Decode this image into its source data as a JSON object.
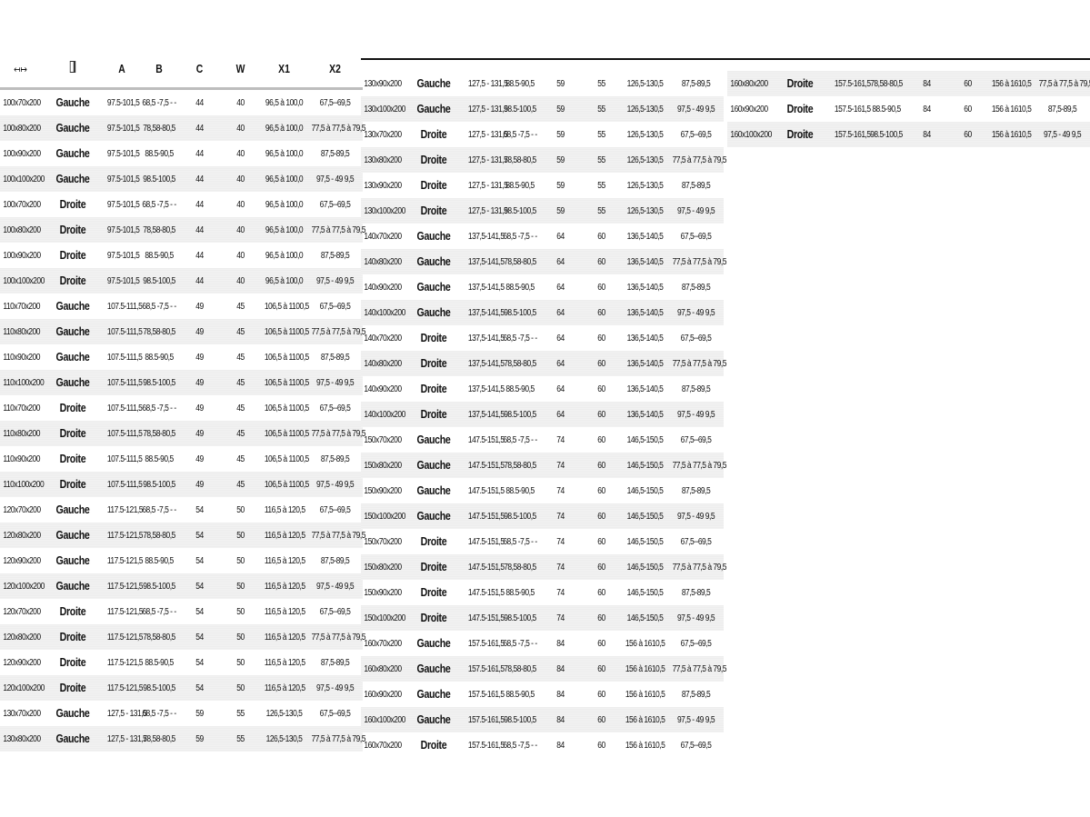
{
  "header": {
    "width_icon": "width-arrows-icon",
    "door_icon": "door-icon",
    "columns": [
      "A",
      "B",
      "C",
      "W",
      "X1",
      "X2"
    ]
  },
  "tables": [
    {
      "rows": [
        [
          "100x70x200",
          "Gauche",
          "97.5-101,5",
          "68,5 -7,5 - -",
          "44",
          "40",
          "96,5 à 100,0",
          "67,5--69,5"
        ],
        [
          "100x80x200",
          "Gauche",
          "97.5-101,5",
          "78,58-80,5",
          "44",
          "40",
          "96,5 à 100,0",
          "77,5 à 77,5 à 79,5"
        ],
        [
          "100x90x200",
          "Gauche",
          "97.5-101,5",
          "88.5-90,5",
          "44",
          "40",
          "96,5 à 100,0",
          "87,5-89,5"
        ],
        [
          "100x100x200",
          "Gauche",
          "97.5-101,5",
          "98.5-100,5",
          "44",
          "40",
          "96,5 à 100,0",
          "97,5 - 49 9,5"
        ],
        [
          "100x70x200",
          "Droite",
          "97.5-101,5",
          "68,5 -7,5 - -",
          "44",
          "40",
          "96,5 à 100,0",
          "67,5--69,5"
        ],
        [
          "100x80x200",
          "Droite",
          "97.5-101,5",
          "78,58-80,5",
          "44",
          "40",
          "96,5 à 100,0",
          "77,5 à 77,5 à 79,5"
        ],
        [
          "100x90x200",
          "Droite",
          "97.5-101,5",
          "88.5-90,5",
          "44",
          "40",
          "96,5 à 100,0",
          "87,5-89,5"
        ],
        [
          "100x100x200",
          "Droite",
          "97.5-101,5",
          "98.5-100,5",
          "44",
          "40",
          "96,5 à 100,0",
          "97,5 - 49 9,5"
        ],
        [
          "110x70x200",
          "Gauche",
          "107.5-111,5",
          "68,5 -7,5 - -",
          "49",
          "45",
          "106,5 à 1100,5",
          "67,5--69,5"
        ],
        [
          "110x80x200",
          "Gauche",
          "107.5-111,5",
          "78,58-80,5",
          "49",
          "45",
          "106,5 à 1100,5",
          "77,5 à 77,5 à 79,5"
        ],
        [
          "110x90x200",
          "Gauche",
          "107.5-111,5",
          "88.5-90,5",
          "49",
          "45",
          "106,5 à 1100,5",
          "87,5-89,5"
        ],
        [
          "110x100x200",
          "Gauche",
          "107.5-111,5",
          "98.5-100,5",
          "49",
          "45",
          "106,5 à 1100,5",
          "97,5 - 49 9,5"
        ],
        [
          "110x70x200",
          "Droite",
          "107.5-111,5",
          "68,5 -7,5 - -",
          "49",
          "45",
          "106,5 à 1100,5",
          "67,5--69,5"
        ],
        [
          "110x80x200",
          "Droite",
          "107.5-111,5",
          "78,58-80,5",
          "49",
          "45",
          "106,5 à 1100,5",
          "77,5 à 77,5 à 79,5"
        ],
        [
          "110x90x200",
          "Droite",
          "107.5-111,5",
          "88.5-90,5",
          "49",
          "45",
          "106,5 à 1100,5",
          "87,5-89,5"
        ],
        [
          "110x100x200",
          "Droite",
          "107.5-111,5",
          "98.5-100,5",
          "49",
          "45",
          "106,5 à 1100,5",
          "97,5 - 49 9,5"
        ],
        [
          "120x70x200",
          "Gauche",
          "117.5-121,5",
          "68,5 -7,5 - -",
          "54",
          "50",
          "116,5 à 120,5",
          "67,5--69,5"
        ],
        [
          "120x80x200",
          "Gauche",
          "117.5-121,5",
          "78,58-80,5",
          "54",
          "50",
          "116,5 à 120,5",
          "77,5 à 77,5 à 79,5"
        ],
        [
          "120x90x200",
          "Gauche",
          "117.5-121,5",
          "88.5-90,5",
          "54",
          "50",
          "116,5 à 120,5",
          "87,5-89,5"
        ],
        [
          "120x100x200",
          "Gauche",
          "117.5-121,5",
          "98.5-100,5",
          "54",
          "50",
          "116,5 à 120,5",
          "97,5 - 49 9,5"
        ],
        [
          "120x70x200",
          "Droite",
          "117.5-121,5",
          "68,5 -7,5 - -",
          "54",
          "50",
          "116,5 à 120,5",
          "67,5--69,5"
        ],
        [
          "120x80x200",
          "Droite",
          "117.5-121,5",
          "78,58-80,5",
          "54",
          "50",
          "116,5 à 120,5",
          "77,5 à 77,5 à 79,5"
        ],
        [
          "120x90x200",
          "Droite",
          "117.5-121,5",
          "88.5-90,5",
          "54",
          "50",
          "116,5 à 120,5",
          "87,5-89,5"
        ],
        [
          "120x100x200",
          "Droite",
          "117.5-121,5",
          "98.5-100,5",
          "54",
          "50",
          "116,5 à 120,5",
          "97,5 - 49 9,5"
        ],
        [
          "130x70x200",
          "Gauche",
          "127,5 - 131,5",
          "68,5 -7,5 - -",
          "59",
          "55",
          "126,5-130,5",
          "67,5--69,5"
        ],
        [
          "130x80x200",
          "Gauche",
          "127,5 - 131,5",
          "78,58-80,5",
          "59",
          "55",
          "126,5-130,5",
          "77,5 à 77,5 à 79,5"
        ]
      ]
    },
    {
      "rows": [
        [
          "130x90x200",
          "Gauche",
          "127,5 - 131,5",
          "88.5-90,5",
          "59",
          "55",
          "126,5-130,5",
          "87,5-89,5"
        ],
        [
          "130x100x200",
          "Gauche",
          "127,5 - 131,5",
          "98.5-100,5",
          "59",
          "55",
          "126,5-130,5",
          "97,5 - 49 9,5"
        ],
        [
          "130x70x200",
          "Droite",
          "127,5 - 131,5",
          "68,5 -7,5 - -",
          "59",
          "55",
          "126,5-130,5",
          "67,5--69,5"
        ],
        [
          "130x80x200",
          "Droite",
          "127,5 - 131,5",
          "78,58-80,5",
          "59",
          "55",
          "126,5-130,5",
          "77,5 à 77,5 à 79,5"
        ],
        [
          "130x90x200",
          "Droite",
          "127,5 - 131,5",
          "88.5-90,5",
          "59",
          "55",
          "126,5-130,5",
          "87,5-89,5"
        ],
        [
          "130x100x200",
          "Droite",
          "127,5 - 131,5",
          "98.5-100,5",
          "59",
          "55",
          "126,5-130,5",
          "97,5 - 49 9,5"
        ],
        [
          "140x70x200",
          "Gauche",
          "137,5-141,5",
          "68,5 -7,5 - -",
          "64",
          "60",
          "136,5-140,5",
          "67,5--69,5"
        ],
        [
          "140x80x200",
          "Gauche",
          "137,5-141,5",
          "78,58-80,5",
          "64",
          "60",
          "136,5-140,5",
          "77,5 à 77,5 à 79,5"
        ],
        [
          "140x90x200",
          "Gauche",
          "137,5-141,5",
          "88.5-90,5",
          "64",
          "60",
          "136,5-140,5",
          "87,5-89,5"
        ],
        [
          "140x100x200",
          "Gauche",
          "137,5-141,5",
          "98.5-100,5",
          "64",
          "60",
          "136,5-140,5",
          "97,5 - 49 9,5"
        ],
        [
          "140x70x200",
          "Droite",
          "137,5-141,5",
          "68,5 -7,5 - -",
          "64",
          "60",
          "136,5-140,5",
          "67,5--69,5"
        ],
        [
          "140x80x200",
          "Droite",
          "137,5-141,5",
          "78,58-80,5",
          "64",
          "60",
          "136,5-140,5",
          "77,5 à 77,5 à 79,5"
        ],
        [
          "140x90x200",
          "Droite",
          "137,5-141,5",
          "88.5-90,5",
          "64",
          "60",
          "136,5-140,5",
          "87,5-89,5"
        ],
        [
          "140x100x200",
          "Droite",
          "137,5-141,5",
          "98.5-100,5",
          "64",
          "60",
          "136,5-140,5",
          "97,5 - 49 9,5"
        ],
        [
          "150x70x200",
          "Gauche",
          "147.5-151,5",
          "68,5 -7,5 - -",
          "74",
          "60",
          "146,5-150,5",
          "67,5--69,5"
        ],
        [
          "150x80x200",
          "Gauche",
          "147.5-151,5",
          "78,58-80,5",
          "74",
          "60",
          "146,5-150,5",
          "77,5 à 77,5 à 79,5"
        ],
        [
          "150x90x200",
          "Gauche",
          "147.5-151,5",
          "88.5-90,5",
          "74",
          "60",
          "146,5-150,5",
          "87,5-89,5"
        ],
        [
          "150x100x200",
          "Gauche",
          "147.5-151,5",
          "98.5-100,5",
          "74",
          "60",
          "146,5-150,5",
          "97,5 - 49 9,5"
        ],
        [
          "150x70x200",
          "Droite",
          "147.5-151,5",
          "68,5 -7,5 - -",
          "74",
          "60",
          "146,5-150,5",
          "67,5--69,5"
        ],
        [
          "150x80x200",
          "Droite",
          "147.5-151,5",
          "78,58-80,5",
          "74",
          "60",
          "146,5-150,5",
          "77,5 à 77,5 à 79,5"
        ],
        [
          "150x90x200",
          "Droite",
          "147.5-151,5",
          "88.5-90,5",
          "74",
          "60",
          "146,5-150,5",
          "87,5-89,5"
        ],
        [
          "150x100x200",
          "Droite",
          "147.5-151,5",
          "98.5-100,5",
          "74",
          "60",
          "146,5-150,5",
          "97,5 - 49 9,5"
        ],
        [
          "160x70x200",
          "Gauche",
          "157.5-161,5",
          "68,5 -7,5 - -",
          "84",
          "60",
          "156 à 1610,5",
          "67,5--69,5"
        ],
        [
          "160x80x200",
          "Gauche",
          "157.5-161,5",
          "78,58-80,5",
          "84",
          "60",
          "156 à 1610,5",
          "77,5 à 77,5 à 79,5"
        ],
        [
          "160x90x200",
          "Gauche",
          "157.5-161,5",
          "88.5-90,5",
          "84",
          "60",
          "156 à 1610,5",
          "87,5-89,5"
        ],
        [
          "160x100x200",
          "Gauche",
          "157.5-161,5",
          "98.5-100,5",
          "84",
          "60",
          "156 à 1610,5",
          "97,5 - 49 9,5"
        ],
        [
          "160x70x200",
          "Droite",
          "157.5-161,5",
          "68,5 -7,5 - -",
          "84",
          "60",
          "156 à 1610,5",
          "67,5--69,5"
        ]
      ]
    },
    {
      "rows": [
        [
          "160x80x200",
          "Droite",
          "157.5-161,5",
          "78,58-80,5",
          "84",
          "60",
          "156 à 1610,5",
          "77,5 à 77,5 à 79,5"
        ],
        [
          "160x90x200",
          "Droite",
          "157.5-161,5",
          "88.5-90,5",
          "84",
          "60",
          "156 à 1610,5",
          "87,5-89,5"
        ],
        [
          "160x100x200",
          "Droite",
          "157.5-161,5",
          "98.5-100,5",
          "84",
          "60",
          "156 à 1610,5",
          "97,5 - 49 9,5"
        ]
      ]
    }
  ]
}
